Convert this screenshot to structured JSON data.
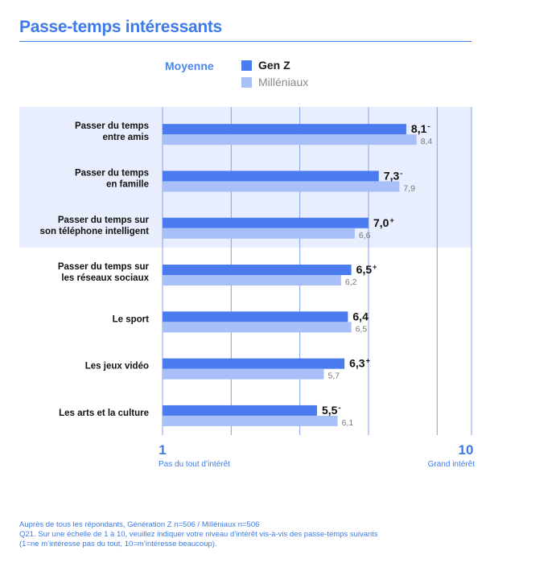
{
  "title": "Passe-temps intéressants",
  "legend": {
    "heading": "Moyenne",
    "items": [
      {
        "name": "Gen Z",
        "color": "#4a7cf0"
      },
      {
        "name": "Milléniaux",
        "color": "#a9bff7"
      }
    ]
  },
  "axis": {
    "min_label": "1",
    "max_label": "10",
    "min_caption": "Pas du tout d’intérêt",
    "max_caption": "Grand intérêt"
  },
  "chart_data": {
    "type": "bar",
    "orientation": "horizontal",
    "title": "Passe-temps intéressants",
    "xlim": [
      1,
      10
    ],
    "grid": true,
    "highlighted_categories": 3,
    "categories": [
      [
        "Passer du temps",
        "entre amis"
      ],
      [
        "Passer du temps",
        "en famille"
      ],
      [
        "Passer du temps sur",
        "son téléphone intelligent"
      ],
      [
        "Passer du temps sur",
        "les réseaux sociaux"
      ],
      [
        "Le sport"
      ],
      [
        "Les jeux vidéo"
      ],
      [
        "Les arts et la culture"
      ]
    ],
    "series": [
      {
        "name": "Gen Z",
        "color": "#4a7cf0",
        "values": [
          8.1,
          7.3,
          7.0,
          6.5,
          6.4,
          6.3,
          5.5
        ],
        "labels": [
          "8,1",
          "7,3",
          "7,0",
          "6,5",
          "6,4",
          "6,3",
          "5,5"
        ],
        "marks": [
          "-",
          "-",
          "+",
          "+",
          "",
          "+",
          "-"
        ]
      },
      {
        "name": "Milléniaux",
        "color": "#a9bff7",
        "values": [
          8.4,
          7.9,
          6.6,
          6.2,
          6.5,
          5.7,
          6.1
        ],
        "labels": [
          "8,4",
          "7,9",
          "6,6",
          "6,2",
          "6,5",
          "5,7",
          "6,1"
        ]
      }
    ]
  },
  "footnote": [
    "Auprès de tous les répondants, Génération Z n=506 / Milléniaux n=506",
    "Q21. Sur une échelle de 1 à 10, veuillez indiquer votre niveau d’intérêt vis-à-vis des passe-temps suivants",
    "(1=ne m’intéresse pas du tout, 10=m’intéresse beaucoup)."
  ]
}
